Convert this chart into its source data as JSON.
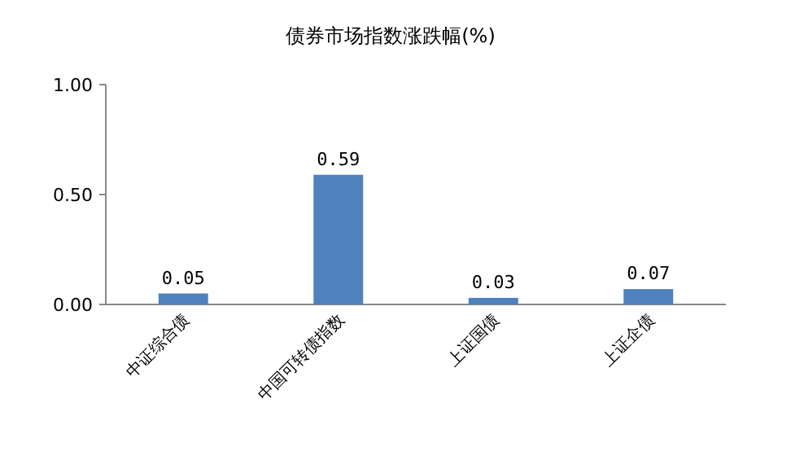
{
  "chart_data": {
    "type": "bar",
    "title": "债券市场指数涨跌幅(%)",
    "categories": [
      "中证综合债",
      "中国可转债指数",
      "上证国债",
      "上证企债"
    ],
    "values": [
      0.05,
      0.59,
      0.03,
      0.07
    ],
    "color": "#4f81bd",
    "ylim": [
      0,
      1
    ],
    "yticks": [
      {
        "value": 0,
        "label": "0.00"
      },
      {
        "value": 0.5,
        "label": "0.50"
      },
      {
        "value": 1,
        "label": "1.00"
      }
    ],
    "data_labels": true,
    "grid": false
  }
}
